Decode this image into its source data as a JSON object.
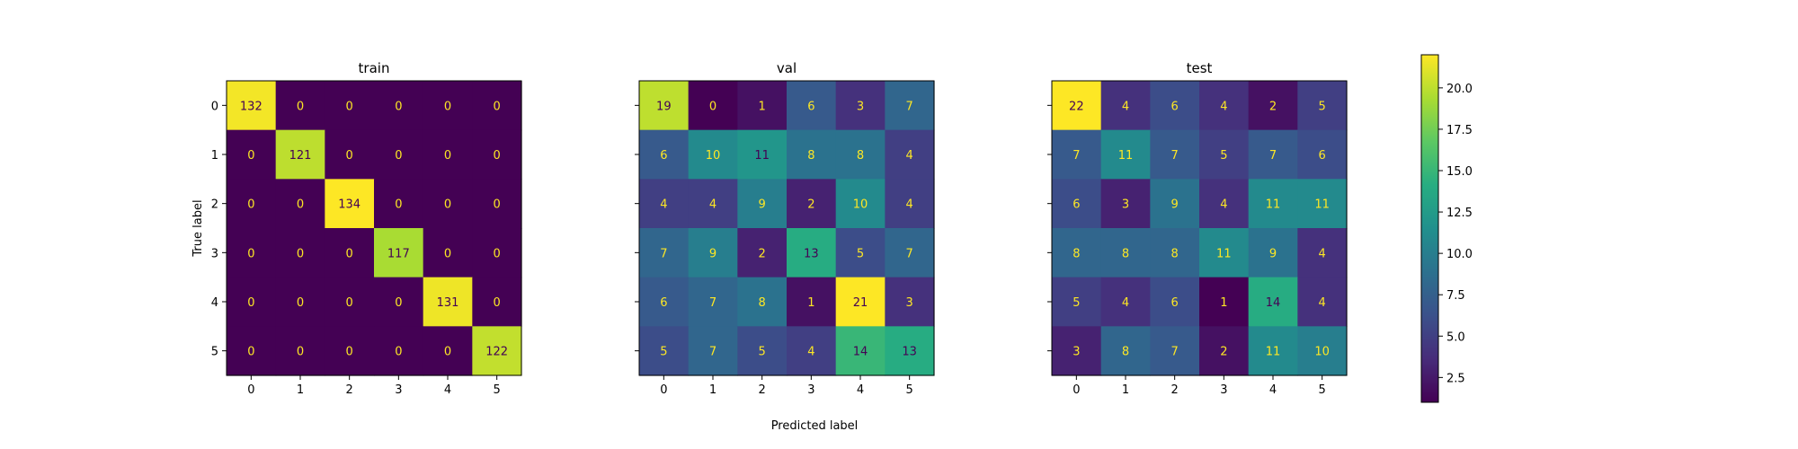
{
  "chart_data": {
    "type": "heatmap",
    "xlabel": "Predicted label",
    "ylabel": "True label",
    "classes": [
      "0",
      "1",
      "2",
      "3",
      "4",
      "5"
    ],
    "colormap": "viridis",
    "colorbar": {
      "range": [
        1,
        22
      ],
      "ticks": [
        "2.5",
        "5.0",
        "7.5",
        "10.0",
        "12.5",
        "15.0",
        "17.5",
        "20.0"
      ]
    },
    "matrices": [
      {
        "title": "train",
        "values": [
          [
            132,
            0,
            0,
            0,
            0,
            0
          ],
          [
            0,
            121,
            0,
            0,
            0,
            0
          ],
          [
            0,
            0,
            134,
            0,
            0,
            0
          ],
          [
            0,
            0,
            0,
            117,
            0,
            0
          ],
          [
            0,
            0,
            0,
            0,
            131,
            0
          ],
          [
            0,
            0,
            0,
            0,
            0,
            122
          ]
        ]
      },
      {
        "title": "val",
        "values": [
          [
            19,
            0,
            1,
            6,
            3,
            7
          ],
          [
            6,
            10,
            11,
            8,
            8,
            4
          ],
          [
            4,
            4,
            9,
            2,
            10,
            4
          ],
          [
            7,
            9,
            2,
            13,
            5,
            7
          ],
          [
            6,
            7,
            8,
            1,
            21,
            3
          ],
          [
            5,
            7,
            5,
            4,
            14,
            13
          ]
        ]
      },
      {
        "title": "test",
        "values": [
          [
            22,
            4,
            6,
            4,
            2,
            5
          ],
          [
            7,
            11,
            7,
            5,
            7,
            6
          ],
          [
            6,
            3,
            9,
            4,
            11,
            11
          ],
          [
            8,
            8,
            8,
            11,
            9,
            4
          ],
          [
            5,
            4,
            6,
            1,
            14,
            4
          ],
          [
            3,
            8,
            7,
            2,
            11,
            10
          ]
        ]
      }
    ]
  }
}
